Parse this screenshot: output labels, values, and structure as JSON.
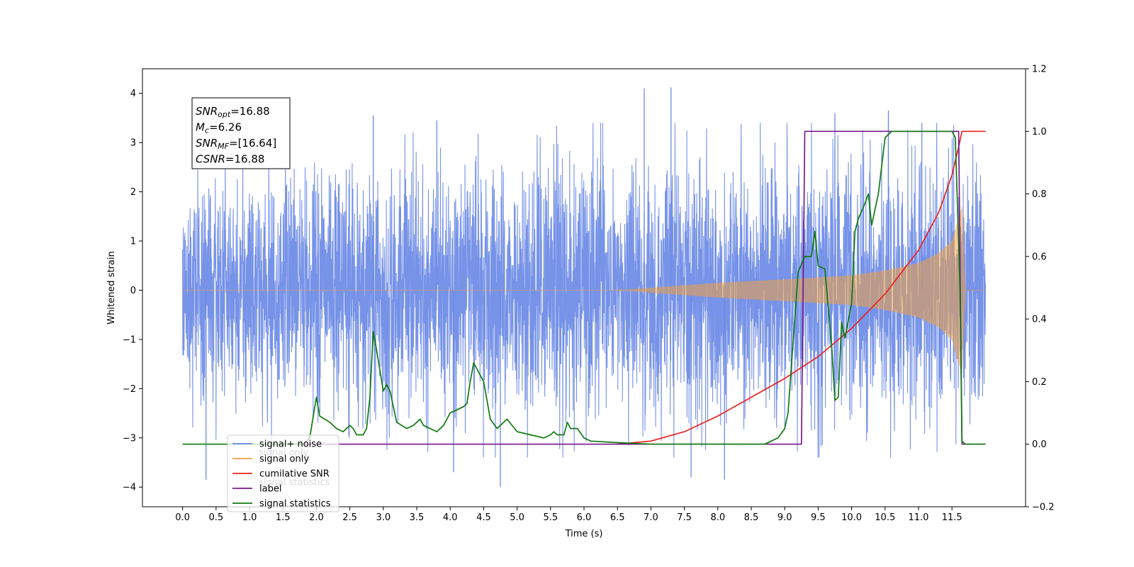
{
  "chart_data": {
    "type": "line",
    "title": "",
    "xlabel": "Time (s)",
    "ylabel": "Whitened strain",
    "ylabel_right": "",
    "xlim": [
      -0.6,
      12.6
    ],
    "ylim": [
      -4.4,
      4.5
    ],
    "ylim_right": [
      -0.2,
      1.2
    ],
    "x_ticks": [
      0.0,
      0.5,
      1.0,
      1.5,
      2.0,
      2.5,
      3.0,
      3.5,
      4.0,
      4.5,
      5.0,
      5.5,
      6.0,
      6.5,
      7.0,
      7.5,
      8.0,
      8.5,
      9.0,
      9.5,
      10.0,
      10.5,
      11.0,
      11.5
    ],
    "x_tick_labels": [
      "0.0",
      "0.5",
      "1.0",
      "1.5",
      "2.0",
      "2.5",
      "3.0",
      "3.5",
      "4.0",
      "4.5",
      "5.0",
      "5.5",
      "6.0",
      "6.5",
      "7.0",
      "7.5",
      "8.0",
      "8.5",
      "9.0",
      "9.5",
      "10.0",
      "10.5",
      "11.0",
      "11.5"
    ],
    "y_ticks": [
      -4,
      -3,
      -2,
      -1,
      0,
      1,
      2,
      3,
      4
    ],
    "y_tick_labels": [
      "−4",
      "−3",
      "−2",
      "−1",
      "0",
      "1",
      "2",
      "3",
      "4"
    ],
    "y_ticks_right": [
      -0.2,
      0.0,
      0.2,
      0.4,
      0.6,
      0.8,
      1.0,
      1.2
    ],
    "y_tick_labels_right": [
      "−0.2",
      "0.0",
      "0.2",
      "0.4",
      "0.6",
      "0.8",
      "1.0",
      "1.2"
    ],
    "grid": false,
    "legend_position": "lower-left",
    "series": [
      {
        "name": "signal+ noise",
        "axis": "left",
        "color": "#6b8ae6",
        "style": "noise",
        "x_range": [
          0.0,
          12.0
        ],
        "envelope": [
          [
            0.0,
            2.0
          ],
          [
            1.0,
            2.1
          ],
          [
            3.0,
            2.2
          ],
          [
            5.0,
            2.2
          ],
          [
            7.0,
            2.3
          ],
          [
            9.0,
            2.3
          ],
          [
            10.5,
            2.4
          ],
          [
            11.5,
            2.5
          ],
          [
            12.0,
            2.3
          ]
        ],
        "extreme_points": [
          [
            0.35,
            -3.85
          ],
          [
            2.85,
            3.55
          ],
          [
            3.8,
            3.45
          ],
          [
            4.75,
            -4.0
          ],
          [
            6.9,
            4.1
          ],
          [
            7.3,
            4.12
          ],
          [
            9.75,
            3.6
          ],
          [
            10.55,
            3.65
          ],
          [
            4.05,
            -3.7
          ],
          [
            7.6,
            -3.8
          ],
          [
            8.1,
            -3.85
          ],
          [
            11.05,
            3.4
          ]
        ]
      },
      {
        "name": "signal only",
        "axis": "left",
        "color": "#f0a040",
        "style": "chirp",
        "x_range": [
          0.0,
          12.0
        ],
        "amplitude_points": [
          [
            0.0,
            0.0
          ],
          [
            6.5,
            0.0
          ],
          [
            7.0,
            0.05
          ],
          [
            8.0,
            0.15
          ],
          [
            9.0,
            0.22
          ],
          [
            10.0,
            0.3
          ],
          [
            10.5,
            0.4
          ],
          [
            11.0,
            0.55
          ],
          [
            11.3,
            0.75
          ],
          [
            11.5,
            1.0
          ],
          [
            11.65,
            1.7
          ],
          [
            11.7,
            0.0
          ],
          [
            12.0,
            0.0
          ]
        ]
      },
      {
        "name": "cumilative SNR",
        "axis": "right",
        "color": "#e8231e",
        "style": "line",
        "points": [
          [
            6.5,
            0.0
          ],
          [
            7.0,
            0.01
          ],
          [
            7.5,
            0.04
          ],
          [
            8.0,
            0.09
          ],
          [
            8.5,
            0.15
          ],
          [
            9.0,
            0.21
          ],
          [
            9.5,
            0.28
          ],
          [
            10.0,
            0.37
          ],
          [
            10.5,
            0.48
          ],
          [
            11.0,
            0.62
          ],
          [
            11.3,
            0.74
          ],
          [
            11.5,
            0.86
          ],
          [
            11.6,
            0.95
          ],
          [
            11.65,
            1.0
          ],
          [
            12.0,
            1.0
          ]
        ]
      },
      {
        "name": "label",
        "axis": "right",
        "color": "#7a1a8a",
        "style": "line",
        "points": [
          [
            1.6,
            0.0
          ],
          [
            9.25,
            0.0
          ],
          [
            9.3,
            1.0
          ],
          [
            11.6,
            1.0
          ],
          [
            11.65,
            0.0
          ],
          [
            12.0,
            0.0
          ]
        ]
      },
      {
        "name": "signal statistics",
        "axis": "right",
        "color": "#107a10",
        "style": "line",
        "points": [
          [
            0.0,
            0.0
          ],
          [
            1.8,
            0.0
          ],
          [
            1.9,
            0.02
          ],
          [
            2.0,
            0.15
          ],
          [
            2.05,
            0.09
          ],
          [
            2.2,
            0.07
          ],
          [
            2.3,
            0.05
          ],
          [
            2.4,
            0.04
          ],
          [
            2.45,
            0.05
          ],
          [
            2.5,
            0.06
          ],
          [
            2.55,
            0.05
          ],
          [
            2.6,
            0.03
          ],
          [
            2.7,
            0.03
          ],
          [
            2.75,
            0.05
          ],
          [
            2.8,
            0.15
          ],
          [
            2.85,
            0.36
          ],
          [
            2.9,
            0.3
          ],
          [
            3.0,
            0.17
          ],
          [
            3.05,
            0.19
          ],
          [
            3.1,
            0.17
          ],
          [
            3.2,
            0.07
          ],
          [
            3.35,
            0.05
          ],
          [
            3.45,
            0.06
          ],
          [
            3.55,
            0.08
          ],
          [
            3.6,
            0.06
          ],
          [
            3.7,
            0.05
          ],
          [
            3.8,
            0.04
          ],
          [
            3.9,
            0.06
          ],
          [
            4.0,
            0.1
          ],
          [
            4.1,
            0.11
          ],
          [
            4.2,
            0.12
          ],
          [
            4.25,
            0.13
          ],
          [
            4.3,
            0.2
          ],
          [
            4.35,
            0.26
          ],
          [
            4.45,
            0.22
          ],
          [
            4.5,
            0.2
          ],
          [
            4.6,
            0.08
          ],
          [
            4.7,
            0.05
          ],
          [
            4.8,
            0.07
          ],
          [
            4.85,
            0.08
          ],
          [
            5.0,
            0.04
          ],
          [
            5.2,
            0.03
          ],
          [
            5.4,
            0.02
          ],
          [
            5.5,
            0.03
          ],
          [
            5.55,
            0.04
          ],
          [
            5.6,
            0.03
          ],
          [
            5.7,
            0.03
          ],
          [
            5.75,
            0.07
          ],
          [
            5.8,
            0.05
          ],
          [
            5.9,
            0.05
          ],
          [
            6.0,
            0.02
          ],
          [
            6.1,
            0.01
          ],
          [
            6.5,
            0.005
          ],
          [
            7.0,
            0.0
          ],
          [
            8.7,
            0.0
          ],
          [
            8.8,
            0.01
          ],
          [
            8.9,
            0.02
          ],
          [
            9.0,
            0.05
          ],
          [
            9.05,
            0.1
          ],
          [
            9.1,
            0.25
          ],
          [
            9.2,
            0.55
          ],
          [
            9.3,
            0.6
          ],
          [
            9.4,
            0.6
          ],
          [
            9.45,
            0.68
          ],
          [
            9.5,
            0.57
          ],
          [
            9.6,
            0.56
          ],
          [
            9.7,
            0.32
          ],
          [
            9.75,
            0.14
          ],
          [
            9.8,
            0.15
          ],
          [
            9.85,
            0.39
          ],
          [
            9.9,
            0.34
          ],
          [
            10.0,
            0.45
          ],
          [
            10.05,
            0.68
          ],
          [
            10.1,
            0.72
          ],
          [
            10.2,
            0.77
          ],
          [
            10.25,
            0.8
          ],
          [
            10.3,
            0.7
          ],
          [
            10.4,
            0.8
          ],
          [
            10.5,
            0.98
          ],
          [
            10.6,
            1.0
          ],
          [
            11.5,
            1.0
          ],
          [
            11.55,
            0.98
          ],
          [
            11.62,
            0.5
          ],
          [
            11.65,
            0.01
          ],
          [
            11.7,
            0.0
          ],
          [
            12.0,
            0.0
          ]
        ]
      }
    ],
    "annotations": [
      {
        "base": "SNR",
        "sub": "opt",
        "value": "=16.88"
      },
      {
        "base": "M",
        "sub": "c",
        "value": "=6.26"
      },
      {
        "base": "SNR",
        "sub": "MF",
        "value": "=[16.64]"
      },
      {
        "base": "CSNR",
        "sub": "",
        "value": "=16.88"
      }
    ],
    "legend": [
      {
        "label": "signal+ noise",
        "color": "#6b8ae6"
      },
      {
        "label": "signal only",
        "color": "#f0a040"
      },
      {
        "label": "cumilative SNR",
        "color": "#e8231e"
      },
      {
        "label": "label",
        "color": "#7a1a8a"
      },
      {
        "label": "signal statistics",
        "color": "#107a10"
      }
    ],
    "overlapped_legend_text": [
      {
        "text": "signal only",
        "y_value": -3.3,
        "x_value": 1.15
      },
      {
        "text": "signal statistics",
        "y_value": -3.9,
        "x_value": 1.15
      }
    ]
  }
}
